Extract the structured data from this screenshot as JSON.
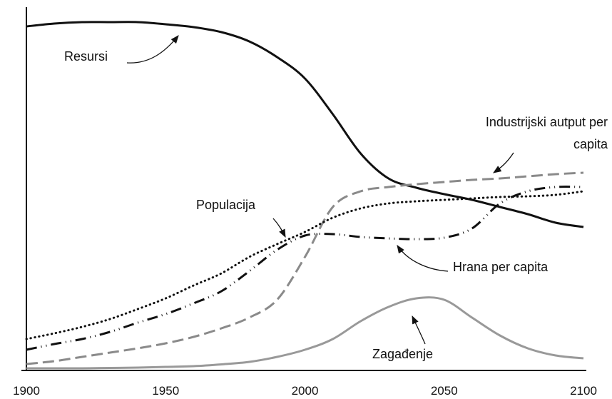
{
  "chart_data": {
    "type": "line",
    "x": [
      1900,
      1910,
      1920,
      1930,
      1940,
      1950,
      1960,
      1970,
      1980,
      1990,
      2000,
      2010,
      2020,
      2030,
      2040,
      2050,
      2060,
      2070,
      2080,
      2090,
      2100
    ],
    "xlim": [
      1900,
      2100
    ],
    "xticks": [
      1900,
      1950,
      2000,
      2050,
      2100
    ],
    "ylim": [
      0,
      100
    ],
    "grid": false,
    "series": [
      {
        "name": "Resursi",
        "color": "#111111",
        "style": "solid",
        "values": [
          96,
          96.8,
          97.2,
          97.2,
          97.2,
          96.6,
          95.8,
          94.4,
          91.8,
          87.4,
          81.4,
          71.4,
          60.4,
          53.4,
          50.8,
          49,
          47.4,
          45.4,
          43.4,
          41,
          39.8
        ]
      },
      {
        "name": "Industrijski autput per capita",
        "color": "#8a8a8a",
        "style": "dashed",
        "values": [
          1.4,
          2.2,
          3.4,
          4.6,
          5.8,
          7.2,
          9,
          11.4,
          14.4,
          19.4,
          31.4,
          45.4,
          49.8,
          51,
          51.8,
          52.4,
          53,
          53.4,
          54,
          54.6,
          55
        ]
      },
      {
        "name": "Populacija",
        "color": "#111111",
        "style": "dotted",
        "values": [
          8.4,
          10,
          11.8,
          14,
          16.8,
          19.8,
          23.4,
          26.8,
          31.4,
          35,
          38.4,
          42.4,
          45,
          46.4,
          47,
          47.4,
          47.8,
          48.2,
          48.4,
          48.8,
          49.8
        ]
      },
      {
        "name": "Hrana per capita",
        "color": "#111111",
        "style": "dashdot",
        "values": [
          5.4,
          7,
          8.4,
          10.4,
          13,
          15.4,
          18.4,
          21.8,
          27.4,
          33.4,
          37.4,
          37.8,
          37,
          36.6,
          36.4,
          36.8,
          39.4,
          46.4,
          49.8,
          51,
          51
        ]
      },
      {
        "name": "Zagađenje",
        "color": "#999999",
        "style": "solid",
        "values": [
          0.2,
          0.2,
          0.2,
          0.3,
          0.4,
          0.6,
          0.8,
          1.3,
          2,
          3.4,
          5.4,
          8.4,
          13.4,
          17.4,
          19.8,
          19.4,
          14.4,
          9.4,
          5.8,
          3.8,
          3
        ]
      }
    ]
  }
}
